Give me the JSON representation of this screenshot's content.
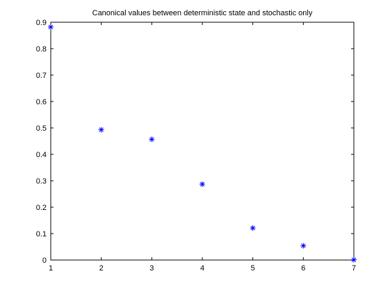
{
  "chart_data": {
    "type": "scatter",
    "title": "Canonical values between deterministic state and stochastic only",
    "xlabel": "",
    "ylabel": "",
    "xlim": [
      1,
      7
    ],
    "ylim": [
      0,
      0.9
    ],
    "xticks": [
      1,
      2,
      3,
      4,
      5,
      6,
      7
    ],
    "yticks": [
      0,
      0.1,
      0.2,
      0.3,
      0.4,
      0.5,
      0.6,
      0.7,
      0.8,
      0.9
    ],
    "xtick_labels": [
      "1",
      "2",
      "3",
      "4",
      "5",
      "6",
      "7"
    ],
    "ytick_labels": [
      "0",
      "0.1",
      "0.2",
      "0.3",
      "0.4",
      "0.5",
      "0.6",
      "0.7",
      "0.8",
      "0.9"
    ],
    "grid": false,
    "marker": "asterisk",
    "marker_color": "#0000ff",
    "series": [
      {
        "x": [
          1,
          2,
          3,
          4,
          5,
          6,
          7
        ],
        "y": [
          0.882,
          0.493,
          0.457,
          0.287,
          0.121,
          0.054,
          0.001
        ]
      }
    ]
  }
}
